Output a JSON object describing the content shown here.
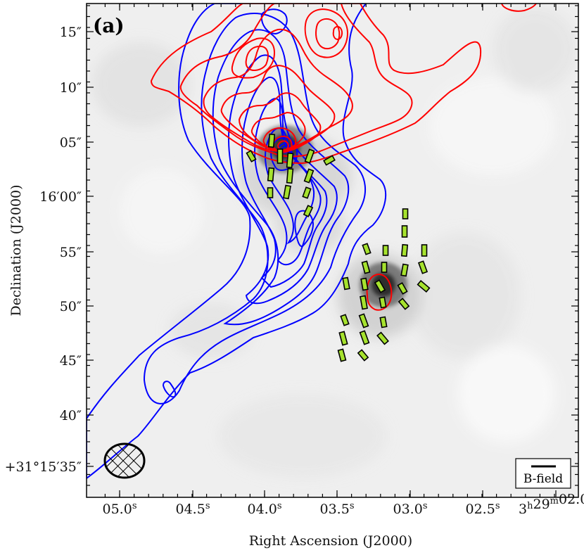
{
  "chart_data": {
    "type": "contour",
    "panel_label": "(a)",
    "xlabel": "Right Ascension (J2000)",
    "ylabel": "Declination (J2000)",
    "x_ticks": [
      "05.0",
      "04.5",
      "04.0",
      "03.5",
      "03.0",
      "02.5",
      "3h29m02.0"
    ],
    "x_tick_labels": [
      {
        "main": "05.0",
        "sup": "s"
      },
      {
        "main": "04.5",
        "sup": "s"
      },
      {
        "main": "04.0",
        "sup": "s"
      },
      {
        "main": "03.5",
        "sup": "s"
      },
      {
        "main": "03.0",
        "sup": "s"
      },
      {
        "main": "02.5",
        "sup": "s"
      },
      {
        "main": "3",
        "sup": "h",
        "main2": "29",
        "sup2": "m",
        "main3": "02.0",
        "sup3": "s"
      }
    ],
    "y_ticks": [
      "+31°15′35″",
      "40″",
      "45″",
      "50″",
      "55″",
      "16′00″",
      "05″",
      "10″",
      "15″"
    ],
    "background": "grayscale dust continuum emission",
    "contour_series": [
      {
        "color": "#ff0000",
        "peak_ra": "03.73",
        "peak_dec": "16′04″"
      },
      {
        "color": "#0000ff",
        "peak_ra": "03.73",
        "peak_dec": "16′04″"
      }
    ],
    "vector_color": "#a6e22e",
    "legend": {
      "label": "B-field",
      "placement": "bottom-right"
    },
    "beam": {
      "placement": "bottom-left",
      "style": "hatched ellipse"
    }
  }
}
